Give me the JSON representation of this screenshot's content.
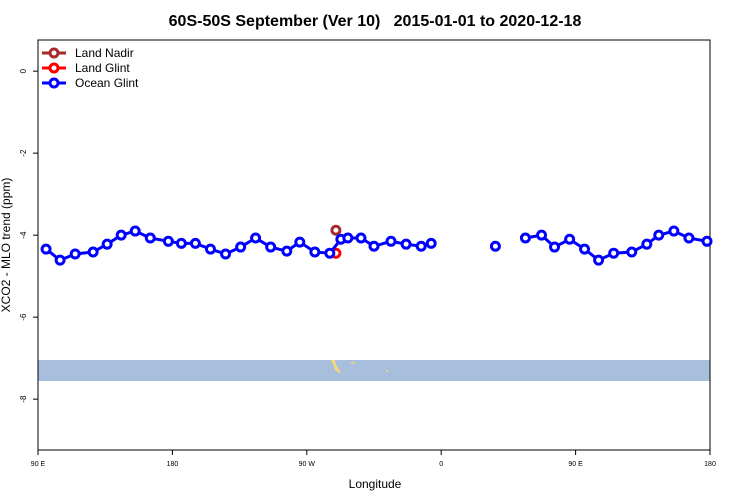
{
  "chart_data": {
    "type": "line",
    "title": "60S-50S September (Ver 10)   2015-01-01 to 2020-12-18",
    "x_label": "Longitude",
    "y_label": "XCO2 - MLO trend (ppm)",
    "xlim": [
      90,
      540
    ],
    "ylim": [
      -9.24,
      0.76
    ],
    "xticks": [
      {
        "value": 90,
        "label": "90 E"
      },
      {
        "value": 180,
        "label": "180"
      },
      {
        "value": 270,
        "label": "90 W"
      },
      {
        "value": 360,
        "label": "0"
      },
      {
        "value": 450,
        "label": "90 E"
      },
      {
        "value": 540,
        "label": "180"
      }
    ],
    "yticks": [
      0,
      -2,
      -4,
      -6,
      -8
    ],
    "legend": "top-left",
    "series": [
      {
        "name": "Land Nadir",
        "color": "#a52a2a",
        "x": [
          289.5
        ],
        "values": [
          -3.88
        ]
      },
      {
        "name": "Land Glint",
        "color": "#ff0000",
        "x": [
          289.5
        ],
        "values": [
          -4.44
        ]
      },
      {
        "name": "Ocean Glint",
        "color": "#0000ff",
        "x": [
          95.4,
          104.8,
          114.9,
          126.9,
          136.3,
          145.7,
          155.1,
          165.2,
          177.3,
          186.0,
          195.4,
          205.5,
          215.6,
          225.7,
          235.7,
          245.8,
          256.6,
          265.3,
          275.4,
          285.4,
          292.8,
          297.5,
          306.3,
          315.0,
          326.4,
          336.5,
          346.6,
          353.3,
          null,
          396.3,
          null,
          416.4,
          427.2,
          435.9,
          446.0,
          456.0,
          465.4,
          475.5,
          487.6,
          497.7,
          505.7,
          515.8,
          525.9,
          538.0
        ],
        "values": [
          -4.34,
          -4.61,
          -4.46,
          -4.41,
          -4.22,
          -4.0,
          -3.9,
          -4.07,
          -4.15,
          -4.2,
          -4.2,
          -4.34,
          -4.46,
          -4.29,
          -4.07,
          -4.29,
          -4.39,
          -4.17,
          -4.41,
          -4.44,
          -4.1,
          -4.07,
          -4.07,
          -4.27,
          -4.15,
          -4.22,
          -4.27,
          -4.2,
          null,
          -4.27,
          null,
          -4.07,
          -4.0,
          -4.29,
          -4.1,
          -4.34,
          -4.61,
          -4.44,
          -4.41,
          -4.22,
          -4.0,
          -3.9,
          -4.07,
          -4.15
        ]
      }
    ]
  }
}
